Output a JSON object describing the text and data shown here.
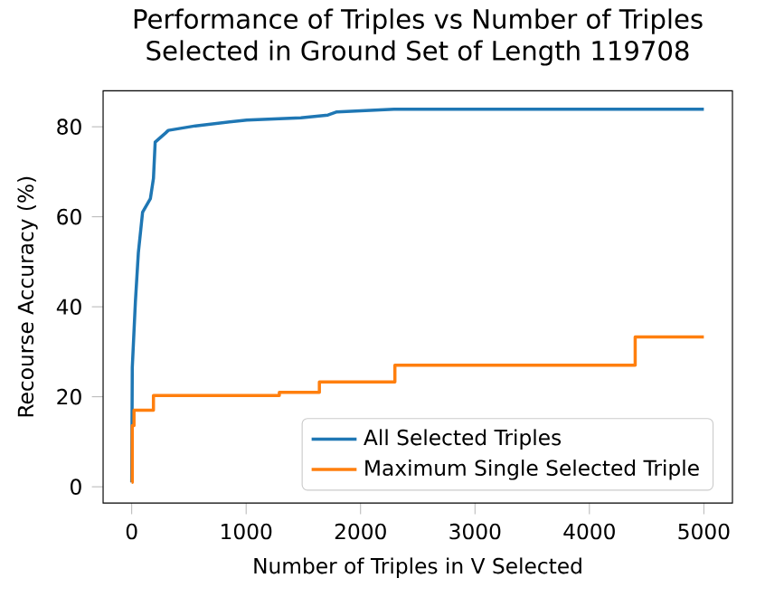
{
  "chart_data": {
    "type": "line",
    "title": "Performance of Triples vs Number of Triples\nSelected in Ground Set of Length 119708",
    "xlabel": "Number of Triples in V Selected",
    "ylabel": "Recourse Accuracy (%)",
    "xlim": [
      -250,
      5250
    ],
    "ylim": [
      -3.6,
      88
    ],
    "xticks": [
      0,
      1000,
      2000,
      3000,
      4000,
      5000
    ],
    "yticks": [
      0,
      20,
      40,
      60,
      80
    ],
    "legend": "bottom right",
    "grid": false,
    "series": [
      {
        "name": "All Selected Triples",
        "color": "#1f77b4",
        "x": [
          0,
          5,
          32,
          58,
          95,
          163,
          190,
          205,
          295,
          320,
          557,
          1005,
          1478,
          1715,
          1793,
          2292,
          5000
        ],
        "values": [
          1,
          26.5,
          41,
          52,
          61,
          64,
          68.5,
          76.6,
          78.6,
          79.2,
          80.2,
          81.5,
          82,
          82.6,
          83.3,
          83.9,
          83.9
        ]
      },
      {
        "name": "Maximum Single Selected Triple",
        "color": "#ff7f0e",
        "type": "step",
        "x": [
          0,
          5,
          20,
          190,
          1290,
          1640,
          2300,
          4400,
          5000
        ],
        "values": [
          1,
          13.6,
          17,
          20.3,
          21,
          23.3,
          27,
          33.3,
          33.3
        ]
      }
    ]
  }
}
